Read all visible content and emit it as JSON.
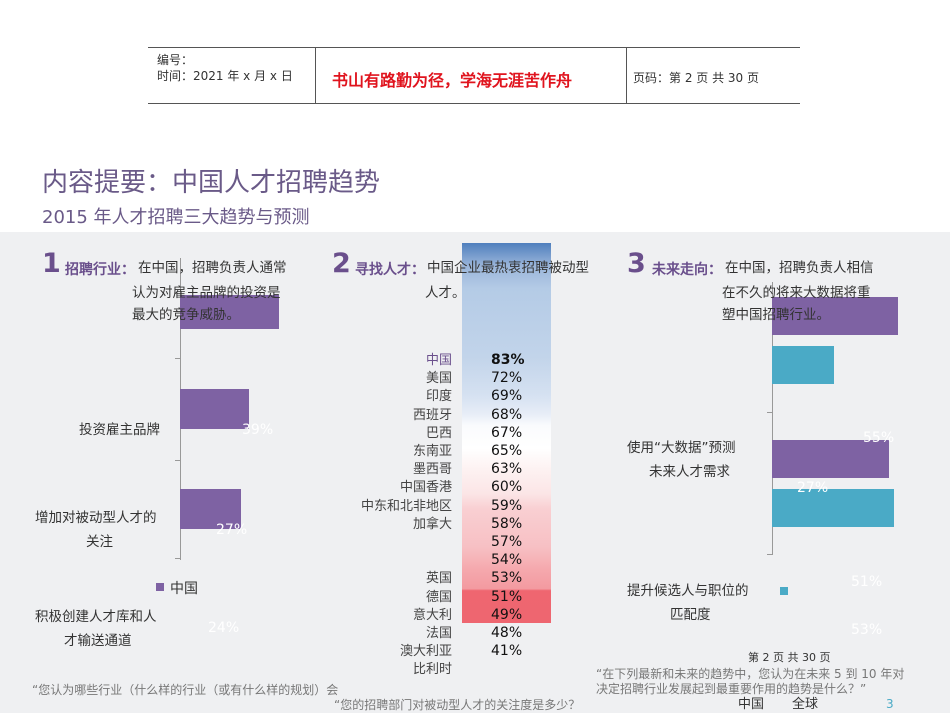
{
  "header": {
    "serial_label": "编号：",
    "date": "时间：2021 年 x 月 x 日",
    "motto": "书山有路勤为径，学海无涯苦作舟",
    "page_info": "页码：第 2 页  共 30 页"
  },
  "title": "内容提要：中国人才招聘趋势",
  "subtitle": "2015  年人才招聘三大趋势与预测",
  "colors": {
    "purple": "#7e62a3",
    "teal": "#4aaac6",
    "title": "#6a4f8c",
    "motto": "#e0141e"
  },
  "section1": {
    "num": "1",
    "heading": "招聘行业：",
    "text": [
      "在中国，招聘负责人通常",
      "认为对雇主品牌的投资是",
      "最大的竞争威胁。"
    ],
    "items": [
      {
        "label": [
          "投资雇主品牌"
        ],
        "value": "39%"
      },
      {
        "label": [
          "增加对被动型人才的",
          "关注"
        ],
        "value": "27%"
      },
      {
        "label": [
          "积极创建人才库和人",
          "才输送通道"
        ],
        "value": "24%"
      }
    ],
    "legend": "中国",
    "footnote": "“您认为哪些行业（什么样的行业（或有什么样的规划）会"
  },
  "section2": {
    "num": "2",
    "heading": "寻找人才：",
    "text": [
      "中国企业最热衷招聘被动型",
      "人才。"
    ],
    "rows": [
      {
        "label": "中国",
        "value": "83%"
      },
      {
        "label": "美国",
        "value": "72%"
      },
      {
        "label": "印度",
        "value": "69%"
      },
      {
        "label": "西班牙",
        "value": "68%"
      },
      {
        "label": "巴西",
        "value": "67%"
      },
      {
        "label": "东南亚",
        "value": "65%"
      },
      {
        "label": "墨西哥",
        "value": "63%"
      },
      {
        "label": "中国香港",
        "value": "60%"
      },
      {
        "label": "中东和北非地区",
        "value": "59%"
      },
      {
        "label": "加拿大",
        "value": "58%"
      },
      {
        "label": "",
        "value": "57%"
      },
      {
        "label": "",
        "value": "54%"
      },
      {
        "label": "英国",
        "value": "53%"
      },
      {
        "label": "德国",
        "value": "51%"
      },
      {
        "label": "意大利",
        "value": "49%"
      },
      {
        "label": "法国",
        "value": "48%"
      },
      {
        "label": "澳大利亚",
        "value": "41%"
      },
      {
        "label": "比利时",
        "value": ""
      }
    ],
    "footnote": "“您的招聘部门对被动型人才的关注度是多少？"
  },
  "section3": {
    "num": "3",
    "heading": "未来走向：",
    "text": [
      "在中国，招聘负责人相信",
      "在不久的将来大数据将重",
      "塑中国招聘行业。"
    ],
    "items": [
      {
        "label": [
          "使用“大数据”预测",
          "未来人才需求"
        ],
        "values": [
          "55%",
          "27%"
        ]
      },
      {
        "label": [
          "提升候选人与职位的",
          "匹配度"
        ],
        "values": [
          "51%",
          "53%"
        ]
      }
    ],
    "legend": [
      "中国",
      "全球"
    ],
    "page_footer": "第  2  页  共  30  页",
    "footnote": [
      "“在下列最新和未来的趋势中，您认为在未来  5  到  10  年对",
      "决定招聘行业发展起到最重要作用的趋势是什么？”"
    ],
    "slide_num": "3"
  }
}
